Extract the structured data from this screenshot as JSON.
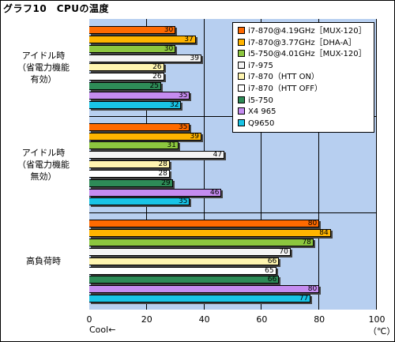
{
  "chart_data": {
    "type": "bar",
    "orientation": "horizontal",
    "title": "グラフ10　CPUの温度",
    "xlabel": "Cool←",
    "unit": "（℃）",
    "xlim": [
      0,
      100
    ],
    "xticks": [
      "0",
      "20",
      "40",
      "60",
      "80",
      "100"
    ],
    "grid": true,
    "legend": "top-right",
    "categories": [
      "アイドル時\n（省電力機能\n有効）",
      "アイドル時\n（省電力機能\n無効）",
      "高負荷時"
    ],
    "series": [
      {
        "name": "i7-870@4.19GHz［MUX-120］",
        "color": "#ff6a00",
        "values": [
          30,
          35,
          80
        ]
      },
      {
        "name": "i7-870@3.77GHz［DHA-A］",
        "color": "#ffb400",
        "values": [
          37,
          39,
          84
        ]
      },
      {
        "name": "i5-750@4.01GHz［MUX-120］",
        "color": "#8cc63f",
        "values": [
          30,
          31,
          78
        ]
      },
      {
        "name": "i7-975",
        "color": "#f4f4f4",
        "values": [
          39,
          47,
          70
        ]
      },
      {
        "name": "i7-870（HTT ON）",
        "color": "#fff5b0",
        "values": [
          26,
          28,
          66
        ]
      },
      {
        "name": "i7-870（HTT OFF）",
        "color": "#ffffff",
        "values": [
          26,
          28,
          65
        ]
      },
      {
        "name": "i5-750",
        "color": "#2e8b57",
        "values": [
          25,
          29,
          66
        ]
      },
      {
        "name": "X4 965",
        "color": "#c58cf0",
        "values": [
          35,
          46,
          80
        ]
      },
      {
        "name": "Q9650",
        "color": "#19c4e6",
        "values": [
          32,
          35,
          77
        ]
      }
    ]
  }
}
